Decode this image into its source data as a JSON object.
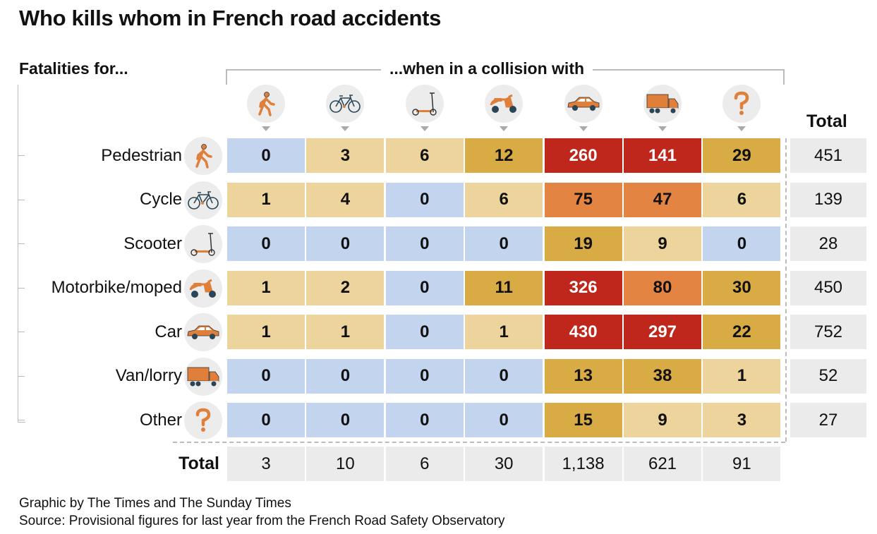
{
  "title": "Who kills whom in French road accidents",
  "row_header": "Fatalities for...",
  "col_header": "...when in a collision with",
  "total_label": "Total",
  "footer": {
    "credit": "Graphic by The Times and The Sunday Times",
    "source": "Source: Provisional figures for last year from the French Road Safety Observatory"
  },
  "colors": {
    "zero": "#c3d4ee",
    "low": "#ecd49c",
    "mid": "#d8ab44",
    "high": "#e48443",
    "top": "#c0271c",
    "icon_orange": "#e07f3a",
    "icon_dark": "#2b4556"
  },
  "chart_data": {
    "type": "heatmap",
    "title": "Who kills whom in French road accidents",
    "row_axis_label": "Fatalities for...",
    "col_axis_label": "...when in a collision with",
    "rows": [
      "Pedestrian",
      "Cycle",
      "Scooter",
      "Motorbike/moped",
      "Car",
      "Van/lorry",
      "Other"
    ],
    "columns": [
      "Pedestrian",
      "Cycle",
      "Scooter",
      "Motorbike/moped",
      "Car",
      "Van/lorry",
      "Other"
    ],
    "icons": [
      "pedestrian-icon",
      "bicycle-icon",
      "scooter-icon",
      "moped-icon",
      "car-icon",
      "lorry-icon",
      "question-icon"
    ],
    "values": [
      [
        0,
        3,
        6,
        12,
        260,
        141,
        29
      ],
      [
        1,
        4,
        0,
        6,
        75,
        47,
        6
      ],
      [
        0,
        0,
        0,
        0,
        19,
        9,
        0
      ],
      [
        1,
        2,
        0,
        11,
        326,
        80,
        30
      ],
      [
        1,
        1,
        0,
        1,
        430,
        297,
        22
      ],
      [
        0,
        0,
        0,
        0,
        13,
        38,
        1
      ],
      [
        0,
        0,
        0,
        0,
        15,
        9,
        3
      ]
    ],
    "row_totals": [
      "451",
      "139",
      "28",
      "450",
      "752",
      "52",
      "27"
    ],
    "col_totals": [
      "3",
      "10",
      "6",
      "30",
      "1,138",
      "621",
      "91"
    ]
  }
}
